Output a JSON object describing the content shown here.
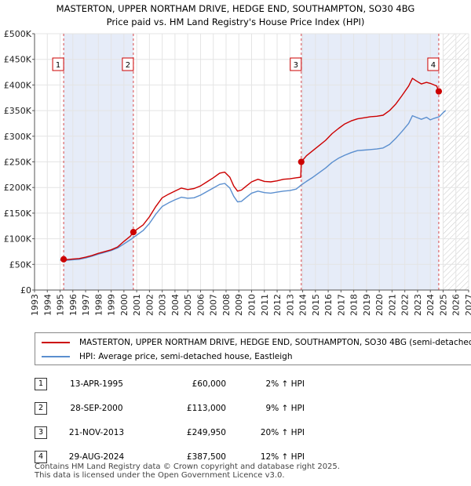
{
  "title_line1": "MASTERTON, UPPER NORTHAM DRIVE, HEDGE END, SOUTHAMPTON, SO30 4BG",
  "title_line2": "Price paid vs. HM Land Registry's House Price Index (HPI)",
  "chart_data": {
    "type": "line",
    "title": "MASTERTON, UPPER NORTHAM DRIVE, HEDGE END, SOUTHAMPTON, SO30 4BG",
    "subtitle": "Price paid vs. HM Land Registry's House Price Index (HPI)",
    "xlabel": "",
    "ylabel": "",
    "xlim": [
      1993,
      2027
    ],
    "ylim": [
      0,
      500000
    ],
    "x_ticks": [
      "1993",
      "1994",
      "1995",
      "1996",
      "1997",
      "1998",
      "1999",
      "2000",
      "2001",
      "2002",
      "2003",
      "2004",
      "2005",
      "2006",
      "2007",
      "2008",
      "2009",
      "2010",
      "2011",
      "2012",
      "2013",
      "2014",
      "2015",
      "2016",
      "2017",
      "2018",
      "2019",
      "2020",
      "2021",
      "2022",
      "2023",
      "2024",
      "2025",
      "2026",
      "2027"
    ],
    "y_ticks": [
      {
        "value": 0,
        "label": "£0"
      },
      {
        "value": 50000,
        "label": "£50K"
      },
      {
        "value": 100000,
        "label": "£100K"
      },
      {
        "value": 150000,
        "label": "£150K"
      },
      {
        "value": 200000,
        "label": "£200K"
      },
      {
        "value": 250000,
        "label": "£250K"
      },
      {
        "value": 300000,
        "label": "£300K"
      },
      {
        "value": 350000,
        "label": "£350K"
      },
      {
        "value": 400000,
        "label": "£400K"
      },
      {
        "value": 450000,
        "label": "£450K"
      },
      {
        "value": 500000,
        "label": "£500K"
      }
    ],
    "grid": true,
    "series": [
      {
        "name": "MASTERTON, UPPER NORTHAM DRIVE, HEDGE END, SOUTHAMPTON, SO30 4BG (semi-detached house)",
        "color": "#cc0000",
        "points": [
          [
            1995.28,
            60000
          ],
          [
            1995.6,
            59500
          ],
          [
            1996.0,
            60500
          ],
          [
            1996.5,
            61500
          ],
          [
            1997.0,
            64000
          ],
          [
            1997.5,
            67500
          ],
          [
            1998.0,
            71500
          ],
          [
            1998.5,
            75000
          ],
          [
            1999.0,
            78500
          ],
          [
            1999.5,
            84000
          ],
          [
            2000.0,
            95000
          ],
          [
            2000.5,
            105000
          ],
          [
            2000.74,
            113000
          ],
          [
            2001.0,
            118000
          ],
          [
            2001.5,
            127000
          ],
          [
            2002.0,
            143000
          ],
          [
            2002.5,
            163000
          ],
          [
            2003.0,
            180000
          ],
          [
            2003.5,
            187000
          ],
          [
            2004.0,
            193000
          ],
          [
            2004.5,
            199000
          ],
          [
            2005.0,
            196000
          ],
          [
            2005.5,
            198000
          ],
          [
            2006.0,
            203000
          ],
          [
            2006.5,
            211000
          ],
          [
            2007.0,
            219000
          ],
          [
            2007.5,
            228000
          ],
          [
            2007.9,
            230000
          ],
          [
            2008.3,
            220000
          ],
          [
            2008.6,
            203000
          ],
          [
            2008.9,
            193000
          ],
          [
            2009.2,
            195000
          ],
          [
            2009.6,
            203000
          ],
          [
            2010.0,
            211000
          ],
          [
            2010.5,
            216000
          ],
          [
            2011.0,
            212000
          ],
          [
            2011.5,
            211000
          ],
          [
            2012.0,
            213000
          ],
          [
            2012.5,
            216000
          ],
          [
            2013.0,
            217000
          ],
          [
            2013.5,
            219000
          ],
          [
            2013.85,
            220000
          ],
          [
            2013.89,
            249950
          ],
          [
            2014.3,
            262000
          ],
          [
            2014.8,
            272000
          ],
          [
            2015.3,
            282000
          ],
          [
            2015.8,
            292000
          ],
          [
            2016.3,
            305000
          ],
          [
            2016.8,
            315000
          ],
          [
            2017.3,
            324000
          ],
          [
            2017.8,
            330000
          ],
          [
            2018.3,
            334000
          ],
          [
            2018.8,
            336000
          ],
          [
            2019.3,
            338000
          ],
          [
            2019.8,
            339000
          ],
          [
            2020.3,
            341000
          ],
          [
            2020.8,
            350000
          ],
          [
            2021.3,
            363000
          ],
          [
            2021.8,
            380000
          ],
          [
            2022.3,
            398000
          ],
          [
            2022.6,
            413000
          ],
          [
            2022.9,
            408000
          ],
          [
            2023.3,
            402000
          ],
          [
            2023.7,
            405000
          ],
          [
            2024.0,
            403000
          ],
          [
            2024.3,
            400000
          ],
          [
            2024.5,
            398000
          ],
          [
            2024.66,
            387500
          ]
        ]
      },
      {
        "name": "HPI: Average price, semi-detached house, Eastleigh",
        "color": "#5b8fcf",
        "points": [
          [
            1995.0,
            58500
          ],
          [
            1995.5,
            58000
          ],
          [
            1996.0,
            59000
          ],
          [
            1996.5,
            60000
          ],
          [
            1997.0,
            62500
          ],
          [
            1997.5,
            66000
          ],
          [
            1998.0,
            70000
          ],
          [
            1998.5,
            73500
          ],
          [
            1999.0,
            77000
          ],
          [
            1999.5,
            82000
          ],
          [
            2000.0,
            90000
          ],
          [
            2000.5,
            98000
          ],
          [
            2001.0,
            107000
          ],
          [
            2001.5,
            116000
          ],
          [
            2002.0,
            130000
          ],
          [
            2002.5,
            148000
          ],
          [
            2003.0,
            163000
          ],
          [
            2003.5,
            170000
          ],
          [
            2004.0,
            176000
          ],
          [
            2004.5,
            181000
          ],
          [
            2005.0,
            179000
          ],
          [
            2005.5,
            180000
          ],
          [
            2006.0,
            185000
          ],
          [
            2006.5,
            192000
          ],
          [
            2007.0,
            199000
          ],
          [
            2007.5,
            206000
          ],
          [
            2007.9,
            208000
          ],
          [
            2008.3,
            199000
          ],
          [
            2008.6,
            183000
          ],
          [
            2008.9,
            172000
          ],
          [
            2009.2,
            173000
          ],
          [
            2009.6,
            181000
          ],
          [
            2010.0,
            189000
          ],
          [
            2010.5,
            193000
          ],
          [
            2011.0,
            190000
          ],
          [
            2011.5,
            189000
          ],
          [
            2012.0,
            191000
          ],
          [
            2012.5,
            193000
          ],
          [
            2013.0,
            194000
          ],
          [
            2013.5,
            197000
          ],
          [
            2013.89,
            205000
          ],
          [
            2014.3,
            212000
          ],
          [
            2014.8,
            220000
          ],
          [
            2015.3,
            229000
          ],
          [
            2015.8,
            238000
          ],
          [
            2016.3,
            249000
          ],
          [
            2016.8,
            257000
          ],
          [
            2017.3,
            263000
          ],
          [
            2017.8,
            268000
          ],
          [
            2018.3,
            272000
          ],
          [
            2018.8,
            273000
          ],
          [
            2019.3,
            274000
          ],
          [
            2019.8,
            275000
          ],
          [
            2020.3,
            277000
          ],
          [
            2020.8,
            284000
          ],
          [
            2021.3,
            296000
          ],
          [
            2021.8,
            310000
          ],
          [
            2022.3,
            325000
          ],
          [
            2022.6,
            340000
          ],
          [
            2022.9,
            337000
          ],
          [
            2023.3,
            333000
          ],
          [
            2023.7,
            337000
          ],
          [
            2024.0,
            332000
          ],
          [
            2024.3,
            335000
          ],
          [
            2024.7,
            338000
          ],
          [
            2025.0,
            346000
          ],
          [
            2025.2,
            350000
          ]
        ]
      }
    ],
    "transactions": [
      {
        "num": "1",
        "date": "13-APR-1995",
        "x": 1995.28,
        "price": 60000,
        "price_label": "£60,000",
        "hpi": "2% ↑ HPI"
      },
      {
        "num": "2",
        "date": "28-SEP-2000",
        "x": 2000.74,
        "price": 113000,
        "price_label": "£113,000",
        "hpi": "9% ↑ HPI"
      },
      {
        "num": "3",
        "date": "21-NOV-2013",
        "x": 2013.89,
        "price": 249950,
        "price_label": "£249,950",
        "hpi": "20% ↑ HPI"
      },
      {
        "num": "4",
        "date": "29-AUG-2024",
        "x": 2024.66,
        "price": 387500,
        "price_label": "£387,500",
        "hpi": "12% ↑ HPI"
      }
    ],
    "future_from": 2025.0
  },
  "legend": {
    "property_label": "MASTERTON, UPPER NORTHAM DRIVE, HEDGE END, SOUTHAMPTON, SO30 4BG (semi-detached house)",
    "hpi_label": "HPI: Average price, semi-detached house, Eastleigh"
  },
  "colors": {
    "property_line": "#cc0000",
    "hpi_line": "#5b8fcf",
    "shade": "#e6ecf8",
    "marker": "#cc0000"
  },
  "footer": {
    "line1": "Contains HM Land Registry data © Crown copyright and database right 2025.",
    "line2": "This data is licensed under the Open Government Licence v3.0."
  }
}
